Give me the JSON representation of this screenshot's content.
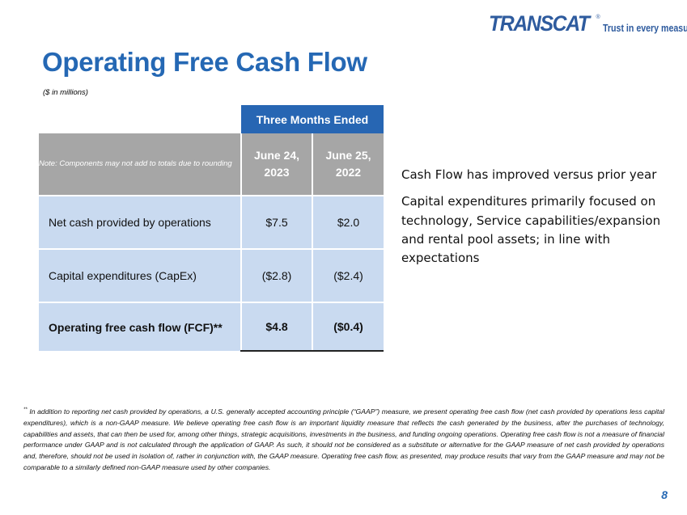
{
  "logo": {
    "brand": "TRANSCAT",
    "registered_mark": "®",
    "tagline": "Trust in every measure"
  },
  "header": {
    "title": "Operating Free Cash Flow",
    "subtitle": "($ in millions)"
  },
  "table": {
    "period_header": "Three Months Ended",
    "note": "Note: Components may not add to totals due to rounding",
    "columns": [
      "June 24, 2023",
      "June 25, 2022"
    ],
    "rows": [
      {
        "label": "Net cash provided by operations",
        "values": [
          "$7.5",
          "$2.0"
        ]
      },
      {
        "label": "Capital expenditures (CapEx)",
        "values": [
          "($2.8)",
          "($2.4)"
        ]
      },
      {
        "label": "Operating free cash flow (FCF)**",
        "values": [
          "$4.8",
          "($0.4)"
        ]
      }
    ]
  },
  "commentary": [
    "Cash Flow has improved versus prior year",
    "Capital expenditures primarily focused on technology, Service capabilities/expansion and rental pool assets; in line with expectations"
  ],
  "footnote": {
    "marker": "**",
    "text": "In addition to reporting net cash provided by operations, a U.S. generally accepted accounting principle (“GAAP”) measure, we present operating free cash flow (net cash provided by operations less capital expenditures), which is a non-GAAP measure. We believe operating free cash flow is an important liquidity measure that reflects the cash generated by the business, after the purchases of technology, capabilities and assets, that can then be used for, among other things, strategic acquisitions, investments in the business, and funding ongoing operations. Operating free cash flow is not a measure of financial performance under GAAP and is not calculated through the application of GAAP. As such, it should not be considered as a substitute or alternative for the GAAP measure of net cash provided by operations and, therefore, should not be used in isolation of, rather in conjunction with, the GAAP measure. Operating free cash flow, as presented, may produce results that vary from the GAAP measure and may not be comparable to a similarly defined non-GAAP measure used by other companies."
  },
  "page_number": "8",
  "colors": {
    "brand_blue": "#2568b4",
    "header_blue": "#2766b3",
    "header_gray": "#a6a6a6",
    "row_fill": "#c9daf0"
  }
}
